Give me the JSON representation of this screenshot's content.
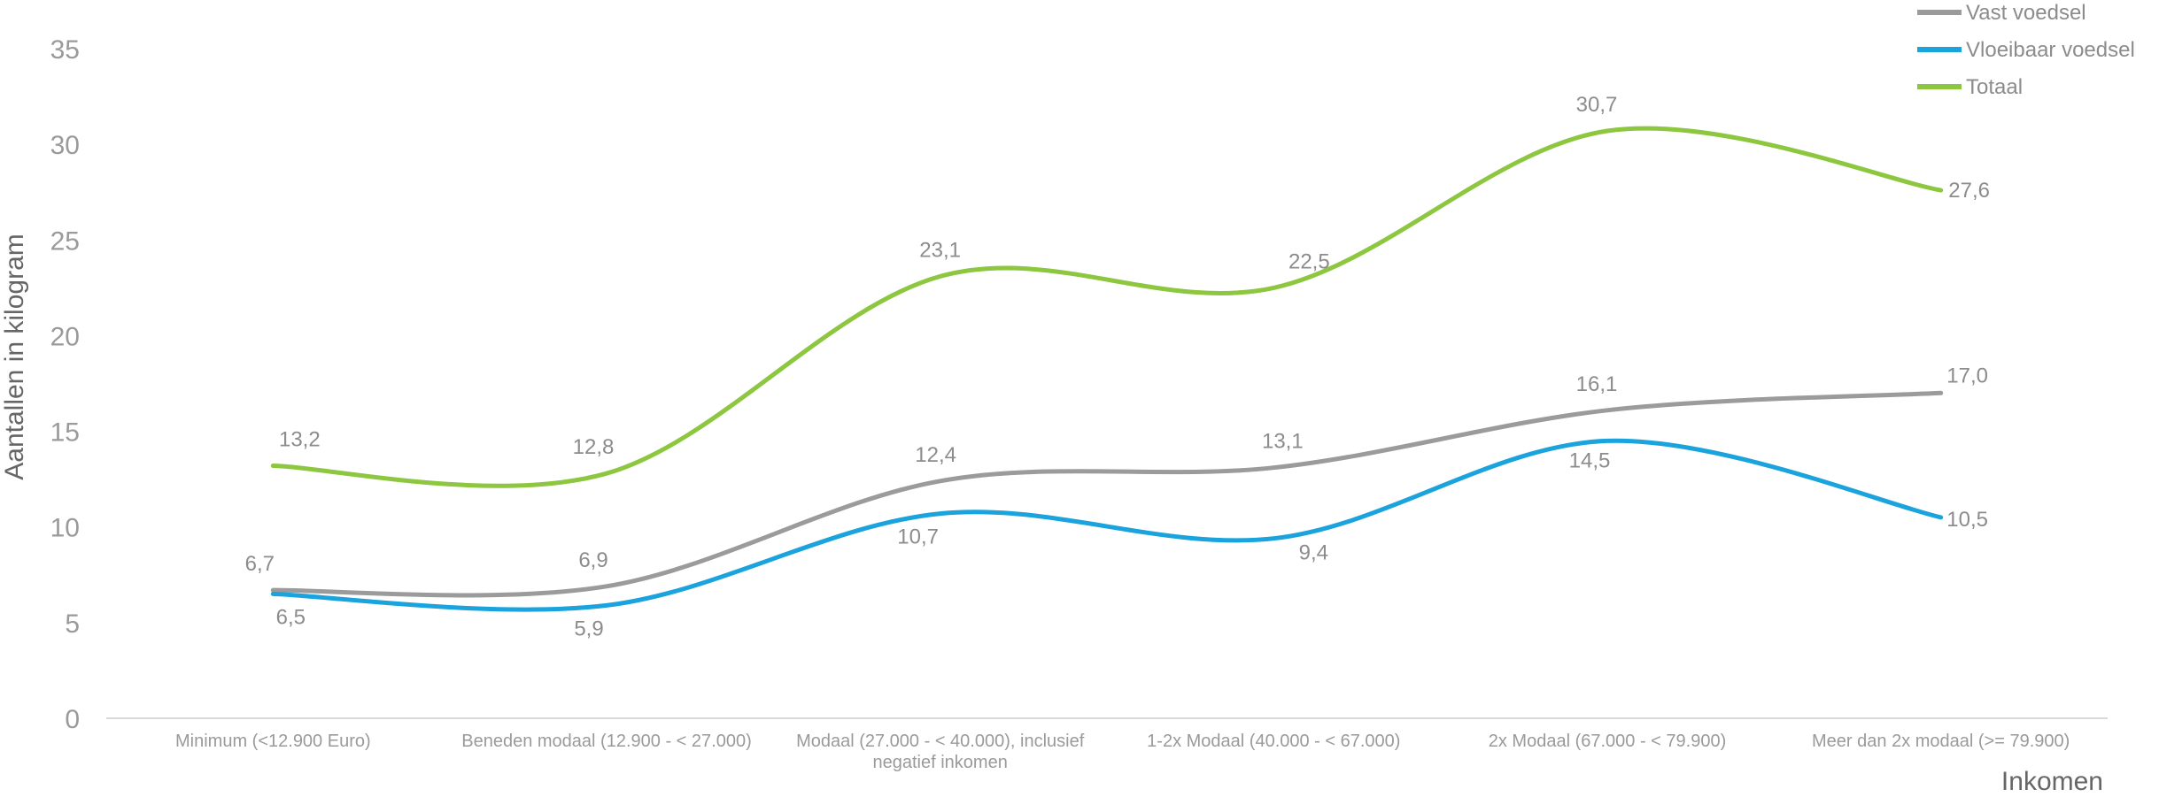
{
  "chart_data": {
    "type": "line",
    "smooth": true,
    "xlabel": "Inkomen",
    "ylabel": "Aantallen in kilogram",
    "ylim": [
      0,
      35
    ],
    "yticks": [
      "0",
      "5",
      "10",
      "15",
      "20",
      "25",
      "30",
      "35"
    ],
    "grid": false,
    "legend_position": "top-right",
    "categories": [
      [
        "Minimum (<12.900 Euro)"
      ],
      [
        "Beneden modaal (12.900 - < 27.000)"
      ],
      [
        "Modaal (27.000 - < 40.000), inclusief",
        "negatief inkomen"
      ],
      [
        "1-2x Modaal (40.000 - < 67.000)"
      ],
      [
        "2x Modaal (67.000 - < 79.900)"
      ],
      [
        "Meer dan 2x modaal (>= 79.900)"
      ]
    ],
    "series": [
      {
        "name": "Vast voedsel",
        "color": "#9b9b9b",
        "values": [
          6.7,
          6.9,
          12.4,
          13.1,
          16.1,
          17.0
        ],
        "labels": [
          "6,7",
          "6,9",
          "12,4",
          "13,1",
          "16,1",
          "17,0"
        ]
      },
      {
        "name": "Vloeibaar voedsel",
        "color": "#1aa3dc",
        "values": [
          6.5,
          5.9,
          10.7,
          9.4,
          14.5,
          10.5
        ],
        "labels": [
          "6,5",
          "5,9",
          "10,7",
          "9,4",
          "14,5",
          "10,5"
        ]
      },
      {
        "name": "Totaal",
        "color": "#8dc63f",
        "values": [
          13.2,
          12.8,
          23.1,
          22.5,
          30.7,
          27.6
        ],
        "labels": [
          "13,2",
          "12,8",
          "23,1",
          "22,5",
          "30,7",
          "27,6"
        ]
      }
    ]
  }
}
